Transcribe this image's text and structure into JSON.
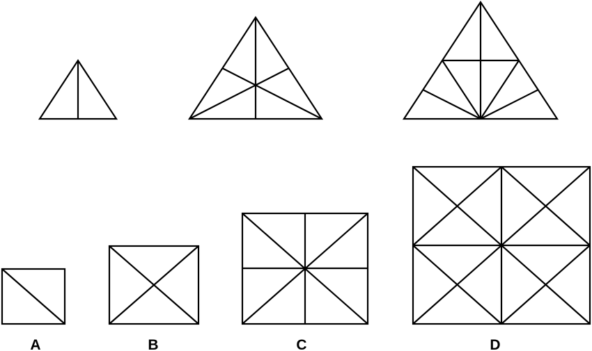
{
  "figure": {
    "description_role": "pattern-sequence-puzzle",
    "stroke_color": "#000000",
    "background_color": "#ffffff",
    "sequence": [
      {
        "shape": "triangle",
        "stage": 1
      },
      {
        "shape": "triangle",
        "stage": 2
      },
      {
        "shape": "triangle",
        "stage": 3
      }
    ],
    "options": [
      {
        "label": "A",
        "shape": "rectangle"
      },
      {
        "label": "B",
        "shape": "rectangle"
      },
      {
        "label": "C",
        "shape": "rectangle"
      },
      {
        "label": "D",
        "shape": "rectangle"
      }
    ]
  }
}
